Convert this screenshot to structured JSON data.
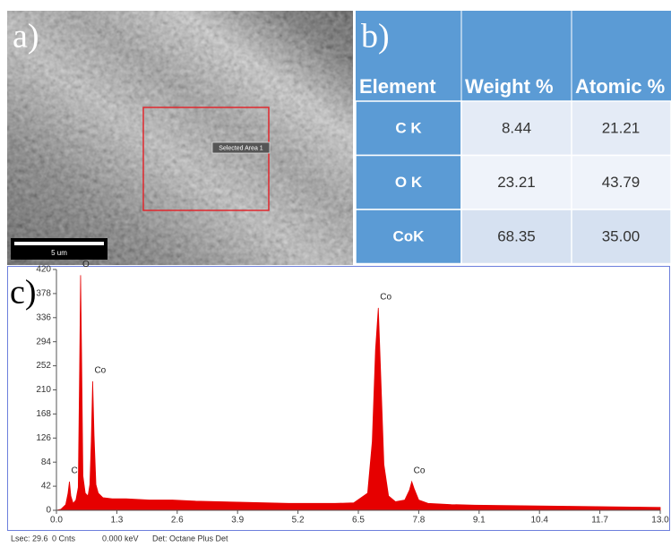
{
  "sem": {
    "label": "a)",
    "scale_bar": "5 um",
    "selection": "Selected Area 1"
  },
  "table": {
    "label": "b)",
    "columns": [
      "Element",
      "Weight %",
      "Atomic %"
    ],
    "rows": [
      [
        "C K",
        "8.44",
        "21.21"
      ],
      [
        "O K",
        "23.21",
        "43.79"
      ],
      [
        "CoK",
        "68.35",
        "35.00"
      ]
    ]
  },
  "chart_data": {
    "type": "area",
    "label": "c)",
    "color": "#e60000",
    "x": [
      0.0,
      0.1,
      0.2,
      0.25,
      0.28,
      0.31,
      0.36,
      0.42,
      0.47,
      0.5,
      0.52,
      0.54,
      0.57,
      0.62,
      0.68,
      0.72,
      0.75,
      0.78,
      0.81,
      0.85,
      0.9,
      1.0,
      1.2,
      1.5,
      2.0,
      2.5,
      3.0,
      3.5,
      4.0,
      4.5,
      5.0,
      5.5,
      6.0,
      6.4,
      6.7,
      6.8,
      6.87,
      6.93,
      6.98,
      7.05,
      7.15,
      7.3,
      7.5,
      7.6,
      7.65,
      7.7,
      7.8,
      8.0,
      8.5,
      9.0,
      10.0,
      11.0,
      12.0,
      13.0
    ],
    "values": [
      0,
      2,
      10,
      30,
      50,
      25,
      12,
      18,
      40,
      250,
      410,
      280,
      60,
      30,
      25,
      45,
      120,
      225,
      130,
      45,
      30,
      22,
      20,
      20,
      18,
      18,
      16,
      15,
      14,
      13,
      12,
      12,
      12,
      13,
      30,
      120,
      280,
      353,
      240,
      80,
      25,
      15,
      18,
      35,
      50,
      38,
      18,
      12,
      10,
      9,
      8,
      7,
      6,
      5
    ],
    "xlim": [
      0,
      13
    ],
    "xticks": [
      {
        "value": 0,
        "label": "0.0"
      },
      1.3,
      2.6,
      3.9,
      5.2,
      6.5,
      7.8,
      9.1,
      10.4,
      11.7,
      {
        "value": 13,
        "label": "13.0"
      }
    ],
    "ylim": [
      0,
      420
    ],
    "yticks": [
      0,
      42,
      84,
      126,
      168,
      210,
      252,
      294,
      336,
      378,
      420
    ],
    "annotations": [
      {
        "text": "C",
        "x": 0.28,
        "y": 50
      },
      {
        "text": "O",
        "x": 0.52,
        "y": 410
      },
      {
        "text": "Co",
        "x": 0.78,
        "y": 225
      },
      {
        "text": "Co",
        "x": 6.93,
        "y": 353
      },
      {
        "text": "Co",
        "x": 7.65,
        "y": 50
      }
    ],
    "status_bar": [
      "Lsec: 29.6",
      "0 Cnts",
      "0.000 keV",
      "Det: Octane Plus Det"
    ]
  }
}
